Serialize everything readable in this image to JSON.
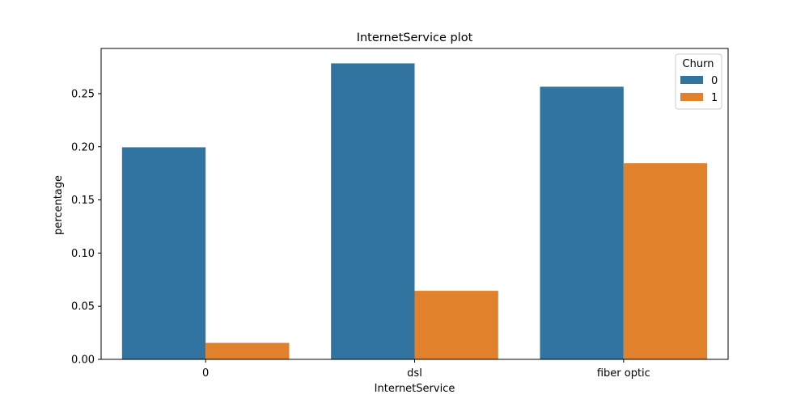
{
  "chart_data": {
    "type": "bar",
    "title": "InternetService plot",
    "xlabel": "InternetService",
    "ylabel": "percentage",
    "categories": [
      "0",
      "dsl",
      "fiber optic"
    ],
    "series": [
      {
        "name": "0",
        "color": "#3274a1",
        "values": [
          0.1995,
          0.2785,
          0.2565
        ]
      },
      {
        "name": "1",
        "color": "#e1812c",
        "values": [
          0.0155,
          0.0645,
          0.1845
        ]
      }
    ],
    "ylim": [
      0,
      0.2925
    ],
    "yticks": [
      "0.00",
      "0.05",
      "0.10",
      "0.15",
      "0.20",
      "0.25"
    ],
    "grid": false,
    "legend": {
      "title": "Churn",
      "position": "top-right"
    }
  }
}
